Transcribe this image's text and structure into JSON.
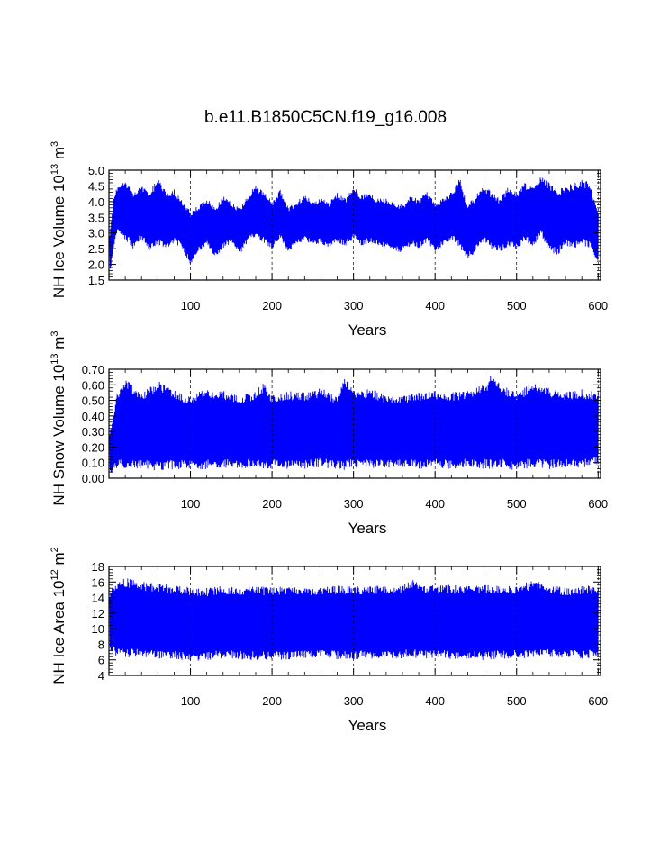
{
  "figure_title": "b.e11.B1850C5CN.f19_g16.008",
  "colors": {
    "series": "#0000ff",
    "axis": "#000000",
    "grid": "#000000"
  },
  "chart_data": [
    {
      "type": "line",
      "title": "",
      "ylabel_main": "NH Ice Volume 10",
      "ylabel_exp": "13",
      "ylabel_unit": " m",
      "ylabel_unit_exp": "3",
      "xlabel": "Years",
      "xlim": [
        0,
        603
      ],
      "ylim": [
        1.5,
        5.0
      ],
      "xticks": [
        100,
        200,
        300,
        400,
        500,
        600
      ],
      "xtick_labels": [
        "100",
        "200",
        "300",
        "400",
        "500",
        "600"
      ],
      "yticks": [
        1.5,
        2.0,
        2.5,
        3.0,
        3.5,
        4.0,
        4.5,
        5.0
      ],
      "ytick_labels": [
        "1.5",
        "2.0",
        "2.5",
        "3.0",
        "3.5",
        "4.0",
        "4.5",
        "5.0"
      ],
      "grid_x": true,
      "series": [
        {
          "name": "NH Ice Volume",
          "annual_cycle": true,
          "envelope_x": [
            1,
            5,
            10,
            20,
            30,
            40,
            50,
            60,
            70,
            80,
            90,
            100,
            110,
            120,
            130,
            140,
            150,
            160,
            170,
            180,
            190,
            200,
            210,
            220,
            230,
            240,
            250,
            260,
            270,
            280,
            290,
            300,
            310,
            320,
            330,
            340,
            350,
            360,
            370,
            380,
            390,
            400,
            410,
            420,
            430,
            440,
            450,
            460,
            470,
            480,
            490,
            500,
            510,
            520,
            530,
            540,
            550,
            560,
            570,
            580,
            590,
            600
          ],
          "upper": [
            3.0,
            4.0,
            4.5,
            4.7,
            4.3,
            4.5,
            4.3,
            4.8,
            4.3,
            4.4,
            4.0,
            3.7,
            3.9,
            4.1,
            3.8,
            4.2,
            4.0,
            3.8,
            4.2,
            4.5,
            4.3,
            4.0,
            4.4,
            3.8,
            4.0,
            4.2,
            4.0,
            4.1,
            4.0,
            4.3,
            4.1,
            4.5,
            4.2,
            4.3,
            4.1,
            4.1,
            4.0,
            3.9,
            4.2,
            4.1,
            4.3,
            4.0,
            4.1,
            4.3,
            4.8,
            3.9,
            4.2,
            4.5,
            4.3,
            4.1,
            4.5,
            4.3,
            4.6,
            4.5,
            4.8,
            4.6,
            4.4,
            4.5,
            4.6,
            4.7,
            4.6,
            3.6
          ],
          "lower": [
            1.7,
            2.3,
            3.0,
            2.8,
            2.5,
            2.8,
            2.4,
            2.6,
            2.5,
            2.7,
            2.5,
            2.0,
            2.4,
            2.6,
            2.2,
            2.5,
            2.7,
            2.3,
            2.7,
            2.9,
            2.7,
            2.5,
            2.8,
            2.4,
            2.6,
            2.8,
            2.6,
            2.7,
            2.5,
            2.7,
            2.6,
            2.8,
            2.6,
            2.7,
            2.6,
            2.5,
            2.4,
            2.4,
            2.6,
            2.5,
            2.7,
            2.4,
            2.6,
            2.8,
            2.5,
            2.2,
            2.4,
            2.7,
            2.5,
            2.4,
            2.6,
            2.5,
            2.7,
            2.6,
            2.9,
            2.4,
            2.3,
            2.6,
            2.5,
            2.6,
            2.5,
            2.0
          ]
        }
      ]
    },
    {
      "type": "line",
      "title": "",
      "ylabel_main": "NH Snow Volume 10",
      "ylabel_exp": "13",
      "ylabel_unit": " m",
      "ylabel_unit_exp": "3",
      "xlabel": "Years",
      "xlim": [
        0,
        603
      ],
      "ylim": [
        0.0,
        0.7
      ],
      "xticks": [
        100,
        200,
        300,
        400,
        500,
        600
      ],
      "xtick_labels": [
        "100",
        "200",
        "300",
        "400",
        "500",
        "600"
      ],
      "yticks": [
        0.0,
        0.1,
        0.2,
        0.3,
        0.4,
        0.5,
        0.6,
        0.7
      ],
      "ytick_labels": [
        "0.00",
        "0.10",
        "0.20",
        "0.30",
        "0.40",
        "0.50",
        "0.60",
        "0.70"
      ],
      "grid_x": true,
      "series": [
        {
          "name": "NH Snow Volume",
          "annual_cycle": true,
          "envelope_x": [
            1,
            10,
            20,
            40,
            60,
            80,
            100,
            120,
            140,
            160,
            180,
            190,
            200,
            220,
            240,
            260,
            280,
            290,
            300,
            320,
            340,
            360,
            380,
            400,
            420,
            440,
            460,
            470,
            480,
            500,
            520,
            540,
            560,
            580,
            600
          ],
          "upper": [
            0.3,
            0.55,
            0.64,
            0.55,
            0.63,
            0.57,
            0.52,
            0.58,
            0.56,
            0.53,
            0.56,
            0.62,
            0.53,
            0.56,
            0.55,
            0.58,
            0.53,
            0.65,
            0.56,
            0.58,
            0.53,
            0.53,
            0.55,
            0.56,
            0.55,
            0.57,
            0.6,
            0.67,
            0.6,
            0.55,
            0.62,
            0.58,
            0.55,
            0.57,
            0.55
          ],
          "lower": [
            0.02,
            0.07,
            0.06,
            0.06,
            0.05,
            0.06,
            0.06,
            0.06,
            0.07,
            0.06,
            0.07,
            0.04,
            0.07,
            0.06,
            0.06,
            0.07,
            0.06,
            0.05,
            0.07,
            0.06,
            0.07,
            0.07,
            0.06,
            0.07,
            0.06,
            0.07,
            0.06,
            0.06,
            0.07,
            0.05,
            0.07,
            0.06,
            0.07,
            0.06,
            0.09
          ]
        }
      ]
    },
    {
      "type": "line",
      "title": "",
      "ylabel_main": "NH Ice Area 10",
      "ylabel_exp": "12",
      "ylabel_unit": " m",
      "ylabel_unit_exp": "2",
      "xlabel": "Years",
      "xlim": [
        0,
        603
      ],
      "ylim": [
        4,
        18
      ],
      "xticks": [
        100,
        200,
        300,
        400,
        500,
        600
      ],
      "xtick_labels": [
        "100",
        "200",
        "300",
        "400",
        "500",
        "600"
      ],
      "yticks": [
        4,
        6,
        8,
        10,
        12,
        14,
        16,
        18
      ],
      "ytick_labels": [
        "4",
        "6",
        "8",
        "10",
        "12",
        "14",
        "16",
        "18"
      ],
      "grid_x": true,
      "series": [
        {
          "name": "NH Ice Area",
          "annual_cycle": true,
          "envelope_x": [
            1,
            10,
            20,
            40,
            60,
            80,
            100,
            120,
            140,
            160,
            180,
            200,
            220,
            240,
            260,
            280,
            300,
            320,
            340,
            360,
            375,
            380,
            400,
            420,
            440,
            460,
            480,
            500,
            520,
            540,
            560,
            580,
            600
          ],
          "upper": [
            15.0,
            16.0,
            16.5,
            16.0,
            15.8,
            15.5,
            15.3,
            15.2,
            15.5,
            15.4,
            15.4,
            15.3,
            15.5,
            15.3,
            15.4,
            15.5,
            15.4,
            15.5,
            15.5,
            15.6,
            16.5,
            15.8,
            15.6,
            15.6,
            15.5,
            15.6,
            15.5,
            15.5,
            16.2,
            15.7,
            15.2,
            15.5,
            15.5
          ],
          "lower": [
            7.0,
            6.5,
            6.3,
            6.3,
            6.1,
            6.2,
            5.8,
            6.0,
            6.2,
            6.1,
            6.0,
            6.0,
            6.1,
            6.2,
            6.2,
            6.1,
            6.1,
            6.2,
            6.1,
            6.2,
            6.3,
            6.2,
            6.2,
            6.1,
            6.2,
            6.0,
            6.2,
            6.2,
            6.3,
            6.3,
            6.3,
            6.1,
            6.4
          ]
        }
      ]
    }
  ]
}
